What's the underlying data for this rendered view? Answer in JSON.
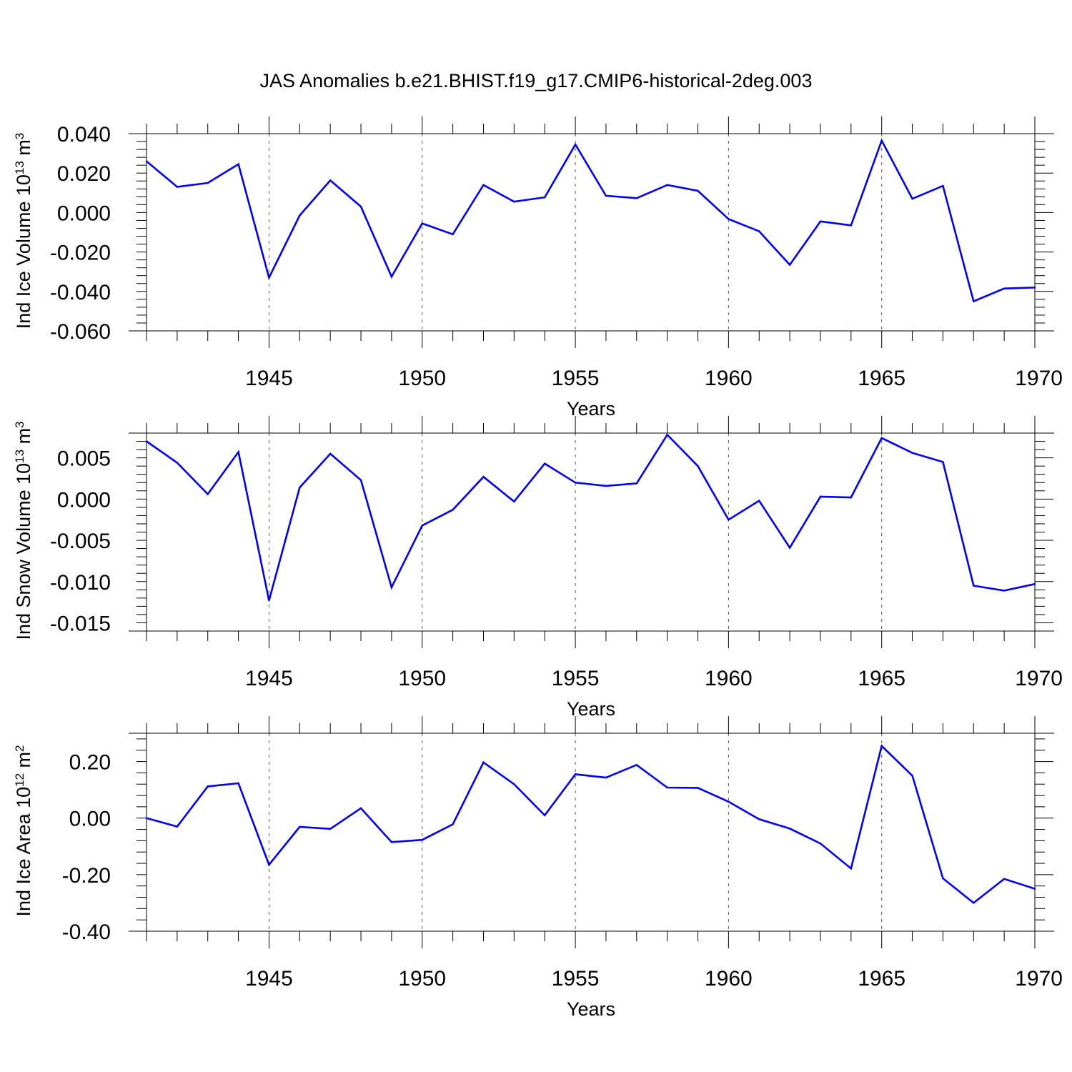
{
  "title": "JAS Anomalies b.e21.BHIST.f19_g17.CMIP6-historical-2deg.003",
  "colors": {
    "line": "#0000ff",
    "axis": "#000000",
    "grid": "#555555"
  },
  "chart_data": [
    {
      "type": "line",
      "xlabel": "Years",
      "ylabel": {
        "main": "Ind Ice Volume 10",
        "sup1": "13",
        "unit": " m",
        "sup2": "3"
      },
      "xlim": [
        1941,
        1970
      ],
      "ylim": [
        -0.06,
        0.04
      ],
      "yticks": [
        0.04,
        0.02,
        0.0,
        -0.02,
        -0.04,
        -0.06
      ],
      "ytick_labels": [
        "0.040",
        "0.020",
        "0.000",
        "-0.020",
        "-0.040",
        "-0.060"
      ],
      "xticks": [
        1945,
        1950,
        1955,
        1960,
        1965,
        1970
      ],
      "xtick_labels": [
        "1945",
        "1950",
        "1955",
        "1960",
        "1965",
        "1970"
      ],
      "x": [
        1941,
        1942,
        1943,
        1944,
        1945,
        1946,
        1947,
        1948,
        1949,
        1950,
        1951,
        1952,
        1953,
        1954,
        1955,
        1956,
        1957,
        1958,
        1959,
        1960,
        1961,
        1962,
        1963,
        1964,
        1965,
        1966,
        1967,
        1968,
        1969,
        1970
      ],
      "values": [
        0.026,
        0.013,
        0.015,
        0.0245,
        -0.033,
        -0.0015,
        0.0163,
        0.003,
        -0.0325,
        -0.0055,
        -0.011,
        0.014,
        0.0055,
        0.0077,
        0.0345,
        0.0085,
        0.0073,
        0.014,
        0.011,
        -0.0033,
        -0.0095,
        -0.0265,
        -0.0045,
        -0.0065,
        0.0365,
        0.007,
        0.0135,
        -0.045,
        -0.0385,
        -0.038
      ]
    },
    {
      "type": "line",
      "xlabel": "Years",
      "ylabel": {
        "main": "Ind Snow Volume 10",
        "sup1": "13",
        "unit": " m",
        "sup2": "3"
      },
      "xlim": [
        1941,
        1970
      ],
      "ylim": [
        -0.016,
        0.008
      ],
      "yticks": [
        0.005,
        0.0,
        -0.005,
        -0.01,
        -0.015
      ],
      "ytick_labels": [
        "0.005",
        "0.000",
        "-0.005",
        "-0.010",
        "-0.015"
      ],
      "xticks": [
        1945,
        1950,
        1955,
        1960,
        1965,
        1970
      ],
      "xtick_labels": [
        "1945",
        "1950",
        "1955",
        "1960",
        "1965",
        "1970"
      ],
      "x": [
        1941,
        1942,
        1943,
        1944,
        1945,
        1946,
        1947,
        1948,
        1949,
        1950,
        1951,
        1952,
        1953,
        1954,
        1955,
        1956,
        1957,
        1958,
        1959,
        1960,
        1961,
        1962,
        1963,
        1964,
        1965,
        1966,
        1967,
        1968,
        1969,
        1970
      ],
      "values": [
        0.007,
        0.0044,
        0.0006,
        0.0057,
        -0.0123,
        0.0014,
        0.0055,
        0.0023,
        -0.0107,
        -0.0032,
        -0.0013,
        0.0027,
        -0.0003,
        0.0043,
        0.002,
        0.0016,
        0.0019,
        0.0078,
        0.004,
        -0.0025,
        -0.0002,
        -0.0059,
        0.0003,
        0.0002,
        0.0074,
        0.0056,
        0.0045,
        -0.0105,
        -0.0111,
        -0.0103
      ]
    },
    {
      "type": "line",
      "xlabel": "Years",
      "ylabel": {
        "main": "Ind Ice Area 10",
        "sup1": "12",
        "unit": " m",
        "sup2": "2"
      },
      "xlim": [
        1941,
        1970
      ],
      "ylim": [
        -0.4,
        0.3
      ],
      "yticks": [
        0.2,
        0.0,
        -0.2,
        -0.4
      ],
      "ytick_labels": [
        "0.20",
        "0.00",
        "-0.20",
        "-0.40"
      ],
      "xticks": [
        1945,
        1950,
        1955,
        1960,
        1965,
        1970
      ],
      "xtick_labels": [
        "1945",
        "1950",
        "1955",
        "1960",
        "1965",
        "1970"
      ],
      "x": [
        1941,
        1942,
        1943,
        1944,
        1945,
        1946,
        1947,
        1948,
        1949,
        1950,
        1951,
        1952,
        1953,
        1954,
        1955,
        1956,
        1957,
        1958,
        1959,
        1960,
        1961,
        1962,
        1963,
        1964,
        1965,
        1966,
        1967,
        1968,
        1969,
        1970
      ],
      "values": [
        0.0,
        -0.03,
        0.112,
        0.123,
        -0.165,
        -0.031,
        -0.038,
        0.035,
        -0.085,
        -0.077,
        -0.022,
        0.197,
        0.12,
        0.01,
        0.155,
        0.143,
        0.188,
        0.108,
        0.107,
        0.058,
        -0.004,
        -0.037,
        -0.09,
        -0.178,
        0.255,
        0.15,
        -0.213,
        -0.3,
        -0.215,
        -0.25
      ]
    }
  ]
}
